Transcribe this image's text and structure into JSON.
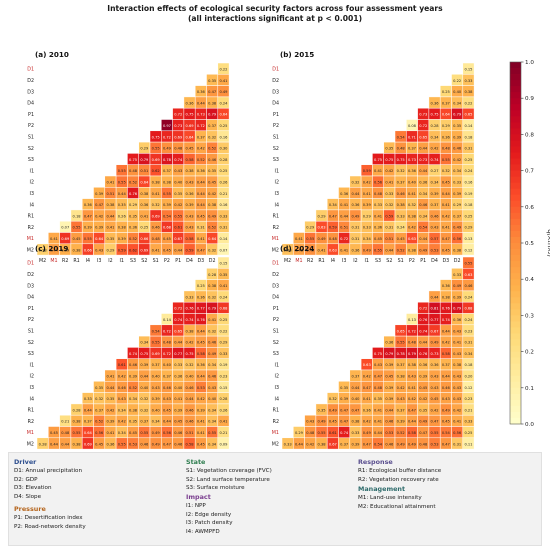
{
  "title_line1": "Interaction effects of ecological security factors across four assessment years",
  "title_line2": "(all interactions significant at p < 0.001)",
  "colorbar_label": "q(X₁∩X₂)",
  "colorbar_ticks": [
    "0.0",
    "0.1",
    "0.2",
    "0.3",
    "0.4",
    "0.5",
    "0.6",
    "0.7",
    "0.8",
    "0.9",
    "1.0"
  ],
  "colors": {
    "scale": [
      "#ffffcc",
      "#ffeda0",
      "#fed976",
      "#feb24c",
      "#fd8d3c",
      "#fc4e2a",
      "#e31a1c",
      "#bd0026",
      "#800026"
    ],
    "driver_head": "#2e4f8f",
    "pressure_head": "#b5651d",
    "state_head": "#2e7d4f",
    "impact_head": "#7a3e8f",
    "response_head": "#5a4f8f",
    "management_head": "#2e6b6b",
    "tick_highlight": "#c62828"
  },
  "chart_data": {
    "type": "heatmap",
    "row_labels": [
      "D1",
      "D2",
      "D3",
      "D4",
      "P1",
      "P2",
      "S1",
      "S2",
      "S3",
      "I1",
      "I2",
      "I3",
      "I4",
      "R1",
      "R2",
      "M1",
      "M2"
    ],
    "col_labels": [
      "M2",
      "M1",
      "R2",
      "R1",
      "I4",
      "I3",
      "I2",
      "I1",
      "S3",
      "S2",
      "S1",
      "P2",
      "P1",
      "D4",
      "D3",
      "D2",
      "D1"
    ],
    "highlighted_labels": [
      "D1",
      "M1"
    ],
    "value_range": [
      0,
      1
    ],
    "panels": [
      {
        "label": "(a) 2010",
        "rows": [
          [
            0.22
          ],
          [
            0.35,
            0.41
          ],
          [
            0.36,
            0.47,
            0.49
          ],
          [
            0.36,
            0.44,
            0.38,
            0.24
          ],
          [
            0.72,
            0.75,
            0.73,
            0.79,
            0.64
          ],
          [
            0.97,
            0.73,
            0.69,
            0.72,
            0.37,
            0.25
          ],
          [
            0.75,
            0.72,
            0.69,
            0.64,
            0.37,
            0.32,
            0.16
          ],
          [
            0.29,
            0.55,
            0.49,
            0.48,
            0.45,
            0.42,
            0.52,
            0.3
          ],
          [
            0.75,
            0.79,
            0.69,
            0.78,
            0.74,
            0.58,
            0.52,
            0.46,
            0.28
          ],
          [
            0.55,
            0.48,
            0.51,
            0.62,
            0.37,
            0.43,
            0.38,
            0.36,
            0.35,
            0.25
          ],
          [
            0.41,
            0.55,
            0.52,
            0.64,
            0.38,
            0.38,
            0.4,
            0.43,
            0.44,
            0.45,
            0.26
          ],
          [
            0.39,
            0.51,
            0.44,
            0.76,
            0.38,
            0.41,
            0.55,
            0.35,
            0.36,
            0.44,
            0.42,
            0.21
          ],
          [
            0.36,
            0.47,
            0.38,
            0.35,
            0.29,
            0.36,
            0.32,
            0.39,
            0.42,
            0.39,
            0.44,
            0.38,
            0.16
          ],
          [
            0.18,
            0.47,
            0.42,
            0.44,
            0.26,
            0.35,
            0.41,
            0.69,
            0.54,
            0.55,
            0.43,
            0.45,
            0.49,
            0.33
          ],
          [
            0.07,
            0.55,
            0.39,
            0.39,
            0.41,
            0.38,
            0.36,
            0.25,
            0.46,
            0.68,
            0.61,
            0.43,
            0.31,
            0.52,
            0.31
          ],
          [
            0.41,
            0.69,
            0.45,
            0.55,
            0.64,
            0.35,
            0.39,
            0.52,
            0.66,
            0.48,
            0.45,
            0.67,
            0.58,
            0.41,
            0.64,
            0.14
          ],
          [
            0.28,
            0.44,
            0.39,
            0.38,
            0.66,
            0.43,
            0.29,
            0.59,
            0.62,
            0.69,
            0.41,
            0.45,
            0.44,
            0.59,
            0.47,
            0.32,
            0.07
          ]
        ]
      },
      {
        "label": "(b) 2015",
        "rows": [
          [
            0.15
          ],
          [
            0.22,
            0.33
          ],
          [
            0.25,
            0.4,
            0.38
          ],
          [
            0.36,
            0.37,
            0.34,
            0.22
          ],
          [
            0.73,
            0.75,
            0.64,
            0.79,
            0.65
          ],
          [
            0.08,
            0.72,
            0.28,
            0.29,
            0.35,
            0.14
          ],
          [
            0.54,
            0.71,
            0.65,
            0.34,
            0.36,
            0.39,
            0.18
          ],
          [
            0.35,
            0.48,
            0.37,
            0.44,
            0.42,
            0.48,
            0.46,
            0.31
          ],
          [
            0.75,
            0.75,
            0.75,
            0.73,
            0.73,
            0.74,
            0.55,
            0.42,
            0.25
          ],
          [
            0.59,
            0.41,
            0.42,
            0.32,
            0.36,
            0.44,
            0.27,
            0.32,
            0.34,
            0.24
          ],
          [
            0.32,
            0.42,
            0.56,
            0.41,
            0.37,
            0.4,
            0.36,
            0.34,
            0.45,
            0.33,
            0.16
          ],
          [
            0.36,
            0.44,
            0.41,
            0.48,
            0.33,
            0.46,
            0.41,
            0.34,
            0.39,
            0.44,
            0.39,
            0.19
          ],
          [
            0.34,
            0.41,
            0.36,
            0.39,
            0.33,
            0.32,
            0.38,
            0.32,
            0.46,
            0.37,
            0.41,
            0.29,
            0.18
          ],
          [
            0.29,
            0.47,
            0.44,
            0.49,
            0.29,
            0.41,
            0.59,
            0.33,
            0.38,
            0.34,
            0.46,
            0.42,
            0.37,
            0.25
          ],
          [
            0.29,
            0.63,
            0.59,
            0.51,
            0.31,
            0.33,
            0.36,
            0.31,
            0.24,
            0.42,
            0.54,
            0.43,
            0.41,
            0.49,
            0.29
          ],
          [
            0.41,
            0.55,
            0.49,
            0.48,
            0.72,
            0.31,
            0.34,
            0.45,
            0.51,
            0.45,
            0.63,
            0.44,
            0.57,
            0.47,
            0.56,
            0.13
          ],
          [
            0.33,
            0.43,
            0.49,
            0.41,
            0.63,
            0.41,
            0.36,
            0.49,
            0.55,
            0.44,
            0.52,
            0.38,
            0.49,
            0.53,
            0.45,
            0.38,
            0.12
          ]
        ]
      },
      {
        "label": "(c) 2019",
        "rows": [
          [
            0.15
          ],
          [
            0.28,
            0.35
          ],
          [
            0.25,
            0.38,
            0.41
          ],
          [
            0.33,
            0.36,
            0.32,
            0.24
          ],
          [
            0.72,
            0.76,
            0.77,
            0.79,
            0.68
          ],
          [
            0.14,
            0.74,
            0.74,
            0.76,
            0.41,
            0.25
          ],
          [
            0.54,
            0.72,
            0.65,
            0.38,
            0.44,
            0.32,
            0.22
          ],
          [
            0.34,
            0.55,
            0.48,
            0.44,
            0.42,
            0.45,
            0.46,
            0.29
          ],
          [
            0.74,
            0.75,
            0.69,
            0.72,
            0.77,
            0.75,
            0.58,
            0.49,
            0.33
          ],
          [
            0.61,
            0.46,
            0.39,
            0.37,
            0.4,
            0.33,
            0.32,
            0.36,
            0.34,
            0.19
          ],
          [
            0.41,
            0.42,
            0.39,
            0.44,
            0.4,
            0.37,
            0.36,
            0.4,
            0.44,
            0.46,
            0.23
          ],
          [
            0.35,
            0.44,
            0.46,
            0.52,
            0.4,
            0.43,
            0.46,
            0.4,
            0.46,
            0.53,
            0.43,
            0.15
          ],
          [
            0.33,
            0.32,
            0.35,
            0.43,
            0.34,
            0.32,
            0.39,
            0.43,
            0.41,
            0.44,
            0.42,
            0.4,
            0.28
          ],
          [
            0.28,
            0.44,
            0.37,
            0.42,
            0.34,
            0.38,
            0.32,
            0.4,
            0.45,
            0.39,
            0.46,
            0.39,
            0.34,
            0.26
          ],
          [
            0.21,
            0.38,
            0.37,
            0.52,
            0.39,
            0.42,
            0.35,
            0.37,
            0.34,
            0.44,
            0.45,
            0.46,
            0.41,
            0.34,
            0.41
          ],
          [
            0.45,
            0.48,
            0.55,
            0.64,
            0.56,
            0.41,
            0.34,
            0.45,
            0.55,
            0.49,
            0.56,
            0.46,
            0.51,
            0.41,
            0.55,
            0.21
          ],
          [
            0.28,
            0.44,
            0.44,
            0.38,
            0.69,
            0.45,
            0.36,
            0.55,
            0.53,
            0.46,
            0.49,
            0.47,
            0.46,
            0.58,
            0.45,
            0.34,
            0.09
          ]
        ]
      },
      {
        "label": "(d) 2024",
        "rows": [
          [
            0.55
          ],
          [
            0.33,
            0.63
          ],
          [
            0.36,
            0.49,
            0.46
          ],
          [
            0.44,
            0.38,
            0.39,
            0.24
          ],
          [
            0.72,
            0.81,
            0.76,
            0.79,
            0.68
          ],
          [
            0.13,
            0.76,
            0.77,
            0.74,
            0.36,
            0.24
          ],
          [
            0.65,
            0.72,
            0.74,
            0.67,
            0.44,
            0.43,
            0.23
          ],
          [
            0.36,
            0.55,
            0.48,
            0.44,
            0.49,
            0.42,
            0.41,
            0.31
          ],
          [
            0.75,
            0.79,
            0.78,
            0.79,
            0.76,
            0.73,
            0.58,
            0.43,
            0.34
          ],
          [
            0.63,
            0.43,
            0.39,
            0.37,
            0.38,
            0.36,
            0.36,
            0.37,
            0.38,
            0.18
          ],
          [
            0.37,
            0.42,
            0.47,
            0.45,
            0.38,
            0.43,
            0.39,
            0.43,
            0.44,
            0.43,
            0.2
          ],
          [
            0.35,
            0.44,
            0.47,
            0.48,
            0.39,
            0.42,
            0.41,
            0.45,
            0.43,
            0.46,
            0.43,
            0.12
          ],
          [
            0.32,
            0.39,
            0.4,
            0.41,
            0.35,
            0.39,
            0.43,
            0.42,
            0.42,
            0.45,
            0.43,
            0.43,
            0.23
          ],
          [
            0.35,
            0.49,
            0.47,
            0.47,
            0.36,
            0.41,
            0.44,
            0.37,
            0.47,
            0.35,
            0.42,
            0.49,
            0.42,
            0.21
          ],
          [
            0.43,
            0.49,
            0.45,
            0.47,
            0.38,
            0.42,
            0.41,
            0.46,
            0.39,
            0.44,
            0.49,
            0.47,
            0.45,
            0.41,
            0.33
          ],
          [
            0.29,
            0.48,
            0.55,
            0.61,
            0.74,
            0.33,
            0.49,
            0.44,
            0.53,
            0.52,
            0.58,
            0.47,
            0.55,
            0.54,
            0.56,
            0.25
          ],
          [
            0.33,
            0.44,
            0.42,
            0.38,
            0.67,
            0.37,
            0.39,
            0.47,
            0.54,
            0.46,
            0.49,
            0.49,
            0.48,
            0.53,
            0.47,
            0.31,
            0.11
          ]
        ]
      }
    ]
  },
  "legend": {
    "groups": [
      {
        "key": "driver",
        "title": "Driver",
        "items": [
          "D1: Annual precipitation",
          "D2: GDP",
          "D3: Elevation",
          "D4: Slope"
        ]
      },
      {
        "key": "state",
        "title": "State",
        "items": [
          "S1: Vegetation coverage (FVC)",
          "S2: Land surface temperature",
          "S3: Surface moisture"
        ]
      },
      {
        "key": "response",
        "title": "Response",
        "items": [
          "R1: Ecological buffer distance",
          "R2: Vegetation recovery rate"
        ]
      },
      {
        "key": "pressure",
        "title": "Pressure",
        "items": [
          "P1: Desertification index",
          "P2: Road-network density"
        ]
      },
      {
        "key": "impact",
        "title": "Impact",
        "items": [
          "I1: NPP",
          "I2: Edge density",
          "I3: Patch density",
          "I4: AWMPFD"
        ]
      },
      {
        "key": "management",
        "title": "Management",
        "items": [
          "M1: Land-use intensity",
          "M2: Educational attainment"
        ]
      }
    ]
  }
}
